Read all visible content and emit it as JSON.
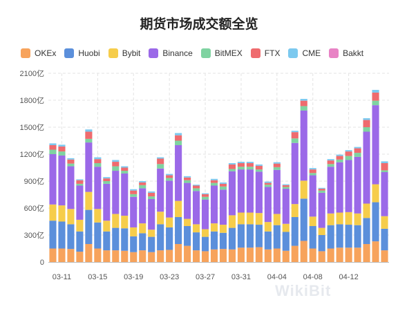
{
  "chart_data": {
    "type": "bar",
    "stacked": true,
    "title": "期货市场成交额全览",
    "ylim": [
      0,
      2100
    ],
    "yticks": [
      0,
      300,
      600,
      900,
      1200,
      1500,
      1800,
      2100
    ],
    "ytick_labels": [
      "0",
      "300亿",
      "600亿",
      "900亿",
      "1200亿",
      "1500亿",
      "1800亿",
      "2100亿"
    ],
    "xtick_labels": [
      "03-11",
      "03-15",
      "03-19",
      "03-23",
      "03-27",
      "03-31",
      "04-04",
      "04-08",
      "04-12"
    ],
    "xtick_categories": [
      "03-11",
      "03-15",
      "03-19",
      "03-23",
      "03-27",
      "03-31",
      "04-04",
      "04-08",
      "04-12"
    ],
    "grid": true,
    "legend_position": "top",
    "categories": [
      "03-10",
      "03-11",
      "03-12",
      "03-13",
      "03-14",
      "03-15",
      "03-16",
      "03-17",
      "03-18",
      "03-19",
      "03-20",
      "03-21",
      "03-22",
      "03-23",
      "03-24",
      "03-25",
      "03-26",
      "03-27",
      "03-28",
      "03-29",
      "03-30",
      "03-31",
      "04-01",
      "04-02",
      "04-03",
      "04-04",
      "04-05",
      "04-06",
      "04-07",
      "04-08",
      "04-09",
      "04-10",
      "04-11",
      "04-12",
      "04-13",
      "04-14",
      "04-15",
      "04-16"
    ],
    "series": [
      {
        "name": "OKEx",
        "color": "#f7a35c",
        "values": [
          150,
          150,
          145,
          115,
          200,
          150,
          130,
          130,
          125,
          110,
          130,
          110,
          130,
          135,
          200,
          180,
          130,
          120,
          140,
          145,
          140,
          160,
          160,
          165,
          140,
          150,
          125,
          180,
          235,
          150,
          120,
          150,
          160,
          160,
          160,
          200,
          230,
          130
        ]
      },
      {
        "name": "Huobi",
        "color": "#5b8fdb",
        "values": [
          310,
          300,
          275,
          225,
          380,
          290,
          210,
          250,
          250,
          175,
          190,
          170,
          290,
          250,
          300,
          220,
          200,
          160,
          200,
          180,
          240,
          260,
          260,
          250,
          200,
          260,
          210,
          320,
          470,
          250,
          180,
          260,
          260,
          255,
          250,
          290,
          435,
          240
        ]
      },
      {
        "name": "Bybit",
        "color": "#f6cd4b",
        "values": [
          180,
          180,
          170,
          130,
          200,
          150,
          120,
          155,
          140,
          100,
          110,
          80,
          140,
          110,
          180,
          80,
          90,
          85,
          90,
          90,
          140,
          130,
          130,
          130,
          105,
          125,
          90,
          145,
          200,
          105,
          80,
          130,
          130,
          140,
          130,
          160,
          200,
          140
        ]
      },
      {
        "name": "Binance",
        "color": "#9b69e8",
        "values": [
          560,
          555,
          475,
          380,
          550,
          470,
          410,
          480,
          470,
          340,
          390,
          340,
          480,
          410,
          620,
          400,
          370,
          330,
          420,
          390,
          490,
          480,
          480,
          460,
          390,
          490,
          390,
          680,
          780,
          460,
          390,
          520,
          560,
          580,
          630,
          800,
          880,
          490
        ]
      },
      {
        "name": "BitMEX",
        "color": "#7fd3a1",
        "values": [
          50,
          45,
          30,
          20,
          40,
          40,
          30,
          50,
          30,
          30,
          35,
          30,
          50,
          30,
          50,
          30,
          30,
          30,
          30,
          35,
          25,
          30,
          30,
          25,
          25,
          30,
          20,
          50,
          50,
          25,
          25,
          30,
          30,
          45,
          45,
          50,
          50,
          20
        ]
      },
      {
        "name": "FTX",
        "color": "#ef6b6e",
        "values": [
          50,
          55,
          45,
          40,
          80,
          45,
          30,
          50,
          35,
          40,
          30,
          40,
          60,
          30,
          60,
          30,
          30,
          30,
          30,
          30,
          50,
          40,
          40,
          40,
          20,
          40,
          20,
          70,
          60,
          40,
          20,
          40,
          40,
          50,
          50,
          80,
          90,
          80
        ]
      },
      {
        "name": "CME",
        "color": "#7cc9ef",
        "values": [
          20,
          20,
          15,
          10,
          25,
          20,
          15,
          20,
          15,
          15,
          15,
          15,
          15,
          15,
          25,
          15,
          10,
          10,
          15,
          15,
          15,
          15,
          15,
          15,
          15,
          15,
          10,
          15,
          20,
          15,
          10,
          15,
          15,
          15,
          15,
          20,
          30,
          20
        ]
      },
      {
        "name": "Bakkt",
        "color": "#e883c5",
        "values": [
          0,
          0,
          0,
          0,
          0,
          0,
          0,
          0,
          0,
          0,
          0,
          0,
          0,
          0,
          0,
          0,
          0,
          0,
          0,
          0,
          0,
          0,
          0,
          0,
          0,
          0,
          0,
          0,
          0,
          0,
          0,
          0,
          0,
          0,
          0,
          0,
          0,
          0
        ]
      }
    ]
  },
  "watermark": "WikiBit"
}
